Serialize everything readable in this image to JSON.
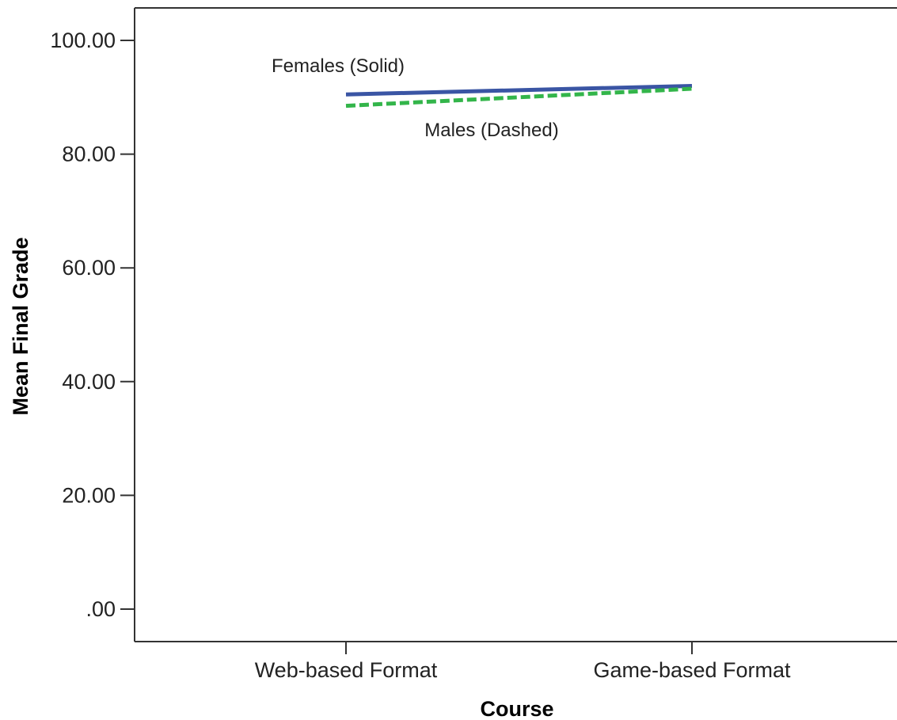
{
  "chart_data": {
    "type": "line",
    "title": "",
    "xlabel": "Course",
    "ylabel": "Mean Final Grade",
    "categories": [
      "Web-based Format",
      "Game-based Format"
    ],
    "ylim": [
      0,
      105.5
    ],
    "yticks": [
      0,
      20,
      40,
      60,
      80,
      100
    ],
    "ytick_labels": [
      ".00",
      "20.00",
      "40.00",
      "60.00",
      "80.00",
      "100.00"
    ],
    "grid": false,
    "legend": "none",
    "series": [
      {
        "values": [
          90.5,
          92.0
        ],
        "color": "#3a55a4",
        "style": "solid",
        "annotation": "Females (Solid)"
      },
      {
        "values": [
          88.5,
          91.5
        ],
        "color": "#33b54a",
        "style": "dashed",
        "annotation": "Males (Dashed)"
      }
    ]
  }
}
